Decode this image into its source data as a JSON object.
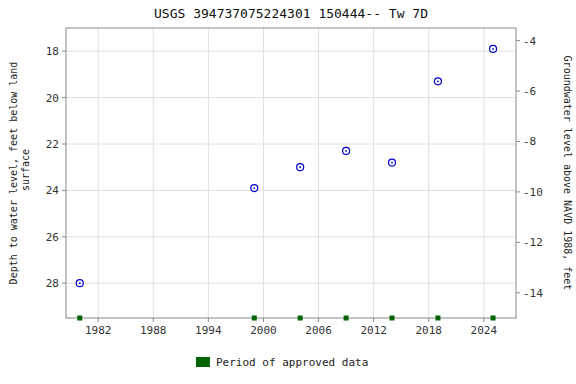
{
  "chart_data": {
    "type": "scatter",
    "title": "USGS 394737075224301 150444-- Tw 7D",
    "y_label": "Depth to water level, feet below land\n surface",
    "y2_label": "Groundwater level above NAVD 1988, feet",
    "xlim": [
      1978.5,
      2027.5
    ],
    "xticks": [
      1982,
      1988,
      1994,
      2000,
      2006,
      2012,
      2018,
      2024
    ],
    "ylim": [
      29.5,
      17.0
    ],
    "yticks": [
      18,
      20,
      22,
      24,
      26,
      28
    ],
    "y2lim": [
      -15.0,
      -3.5
    ],
    "y2ticks": [
      -4,
      -6,
      -8,
      -10,
      -12,
      -14
    ],
    "grid": true,
    "legend": "bottom",
    "series": [
      {
        "color": "#0000cc",
        "marker": "circle",
        "x": [
          1980,
          1999,
          2004,
          2009,
          2014,
          2019,
          2025
        ],
        "values": [
          28.0,
          23.9,
          23.0,
          22.3,
          22.8,
          19.3,
          17.9
        ]
      },
      {
        "name": "Period of approved data",
        "type": "rug",
        "color": "#006400",
        "marker": "square",
        "x": [
          1980,
          1999,
          2004,
          2009,
          2014,
          2019,
          2025
        ]
      }
    ]
  }
}
